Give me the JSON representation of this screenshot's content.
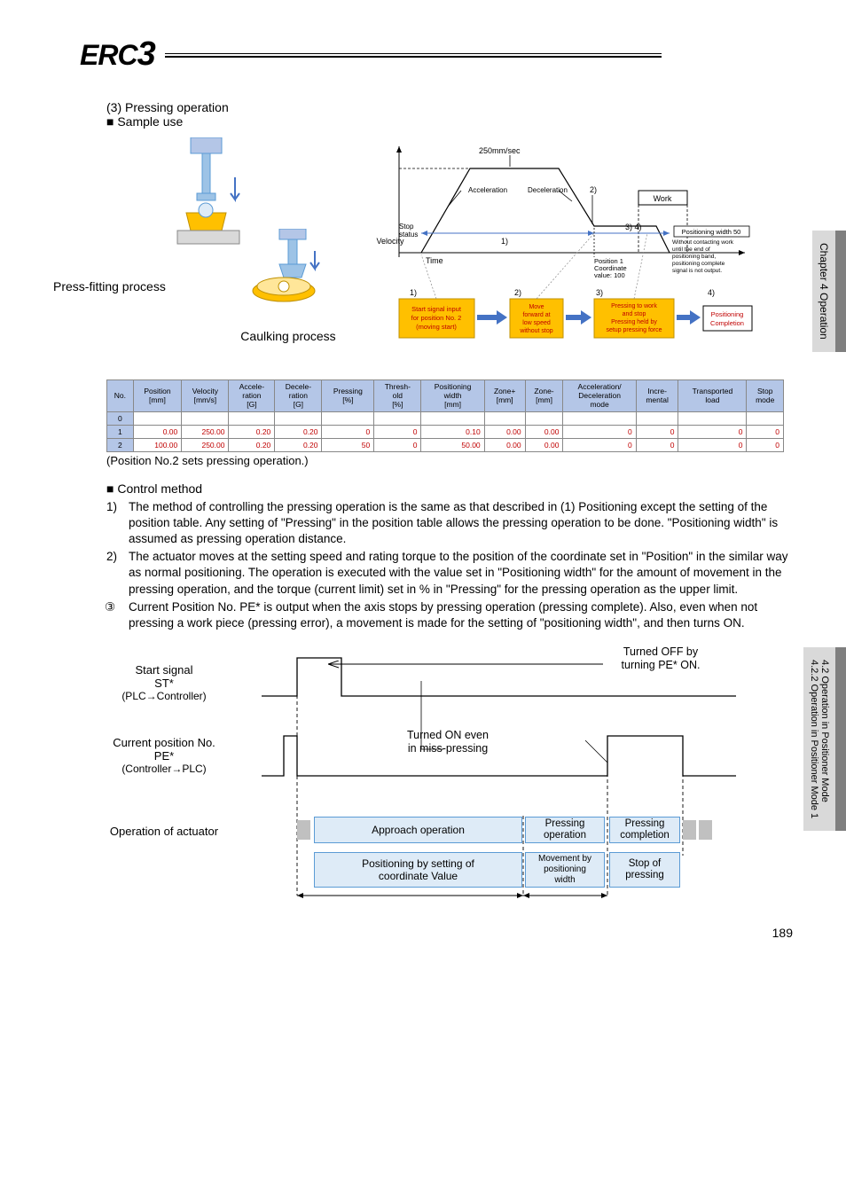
{
  "logo": "ERC3",
  "section": {
    "heading": "(3) Pressing operation",
    "sample_use": "■ Sample use",
    "press_fitting": "Press-fitting process",
    "caulking": "Caulking process"
  },
  "timeline": {
    "speed": "250mm/sec",
    "accel": "Acceleration",
    "decel": "Deceleration",
    "marker2": "2)",
    "work": "Work",
    "stop_status": "Stop\nstatus",
    "velocity": "Velocity",
    "time": "Time",
    "seg1": "1)",
    "seg34": "3) 4)",
    "pos_width": "Positioning width 50",
    "pos1_text": "Position 1\nCoordinate\nvalue: 100",
    "no_contact": "Without contacting work\nuntil the end of\npositioning band,\npositioning complete\nsignal is not output.",
    "step1": "1)",
    "step1_text": "Start signal input\nfor position No. 2\n(moving start)",
    "step2": "2)",
    "step2_text": "Move\nforward at\nlow speed\nwithout stop",
    "step3": "3)",
    "step3_text": "Pressing to work\nand stop\nPressing held by\nsetup pressing force",
    "step4": "4)",
    "step4_text": "Positioning\nCompletion"
  },
  "table": {
    "headers": [
      "No.",
      "Position\n[mm]",
      "Velocity\n[mm/s]",
      "Accele-\nration\n[G]",
      "Decele-\nration\n[G]",
      "Pressing\n[%]",
      "Thresh-\nold\n[%]",
      "Positioning\nwidth\n[mm]",
      "Zone+\n[mm]",
      "Zone-\n[mm]",
      "Acceleration/\nDeceleration\nmode",
      "Incre-\nmental",
      "Transported\nload",
      "Stop\nmode"
    ],
    "rows": [
      {
        "num": "0",
        "cells": [
          "",
          "",
          "",
          "",
          "",
          "",
          "",
          "",
          "",
          "",
          "",
          "",
          ""
        ]
      },
      {
        "num": "1",
        "cells": [
          "0.00",
          "250.00",
          "0.20",
          "0.20",
          "0",
          "0",
          "0.10",
          "0.00",
          "0.00",
          "0",
          "0",
          "0",
          "0"
        ]
      },
      {
        "num": "2",
        "cells": [
          "100.00",
          "250.00",
          "0.20",
          "0.20",
          "50",
          "0",
          "50.00",
          "0.00",
          "0.00",
          "0",
          "0",
          "0",
          "0"
        ]
      }
    ],
    "note": "(Position No.2 sets pressing operation.)"
  },
  "control": {
    "heading": "■ Control method",
    "items": [
      {
        "num": "1)",
        "text": "The method of controlling the pressing operation is the same as that described in (1) Positioning except the setting of the position table. Any setting of \"Pressing\" in the position table allows the pressing operation to be done. \"Positioning width\" is assumed as pressing operation distance."
      },
      {
        "num": "2)",
        "text": "The actuator moves at the setting speed and rating torque to the position of the coordinate set in \"Position\" in the similar way as normal positioning. The operation is executed with the value set in \"Positioning width\" for the amount of movement in the pressing operation, and the torque (current limit) set in % in \"Pressing\" for the pressing operation as the upper limit."
      },
      {
        "num": "③",
        "text": "Current Position No. PE* is output when the axis stops by pressing operation (pressing complete). Also, even when not pressing a work piece (pressing error), a movement is made for the setting of \"positioning width\", and then turns ON."
      }
    ]
  },
  "timing": {
    "labels": [
      {
        "main": "Start signal",
        "sub": "ST*",
        "paren": "(PLC→Controller)"
      },
      {
        "main": "Current position No.",
        "sub": "PE*",
        "paren": "(Controller→PLC)"
      },
      {
        "main": "Operation of actuator",
        "sub": "",
        "paren": ""
      }
    ],
    "callout1": "Turned OFF by\nturning PE* ON.",
    "callout2": "Turned ON even\nin miss-pressing",
    "boxes": {
      "approach": "Approach operation",
      "coord": "Positioning by setting of\ncoordinate Value",
      "press_op": "Pressing\noperation",
      "movement": "Movement by\npositioning\nwidth",
      "press_comp": "Pressing\ncompletion",
      "stop_press": "Stop of\npressing"
    }
  },
  "side_tabs": {
    "tab1": "Chapter 4 Operation",
    "tab2_line1": "4.2 Operation in Positioner Mode",
    "tab2_line2": "4.2.2 Operation in Positioner Mode 1"
  },
  "page_number": "189",
  "colors": {
    "table_header_bg": "#b4c6e7",
    "table_red": "#c00000",
    "box_bg": "#deebf7",
    "box_border": "#5b9bd5",
    "orange_box": "#ffc000",
    "blue_arrow": "#4472c4",
    "red_text": "#c00000",
    "gray_tab": "#d9d9d9",
    "dark_gray": "#7f7f7f"
  }
}
